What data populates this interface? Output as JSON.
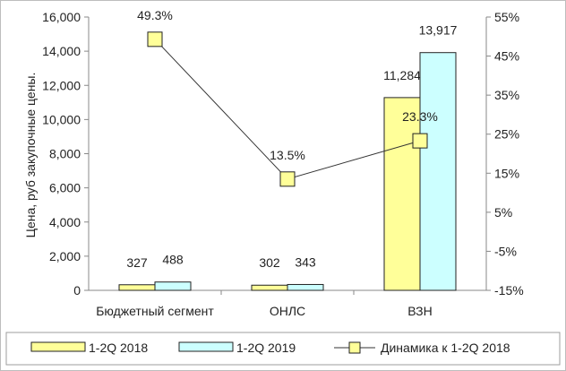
{
  "chart_data": {
    "type": "bar",
    "title": "",
    "categories": [
      "Бюджетный сегмент",
      "ОНЛС",
      "ВЗН"
    ],
    "ylabel": "Цена, руб закупочные цены.",
    "ylim": [
      0,
      16000
    ],
    "yticks": [
      "0",
      "2,000",
      "4,000",
      "6,000",
      "8,000",
      "10,000",
      "12,000",
      "14,000",
      "16,000"
    ],
    "y2lim": [
      -15,
      55
    ],
    "y2ticks": [
      "-15%",
      "-5%",
      "5%",
      "15%",
      "25%",
      "35%",
      "45%",
      "55%"
    ],
    "grid": false,
    "legend_position": "bottom",
    "series": [
      {
        "name": "1-2Q 2018",
        "kind": "bar",
        "axis": "left",
        "color": "#ffff99",
        "values": [
          327,
          302,
          11284
        ],
        "labels": [
          "327",
          "302",
          "11,284"
        ]
      },
      {
        "name": "1-2Q 2019",
        "kind": "bar",
        "axis": "left",
        "color": "#ccffff",
        "values": [
          488,
          343,
          13917
        ],
        "labels": [
          "488",
          "343",
          "13,917"
        ]
      },
      {
        "name": "Динамика к 1-2Q 2018",
        "kind": "line",
        "axis": "right",
        "color": "#ffff99",
        "line_color": "#333333",
        "values": [
          49.3,
          13.5,
          23.3
        ],
        "labels": [
          "49.3%",
          "13.5%",
          "23.3%"
        ]
      }
    ]
  }
}
